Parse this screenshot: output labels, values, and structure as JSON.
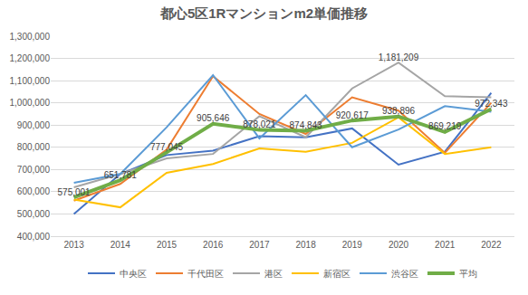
{
  "chart_data": {
    "type": "line",
    "title": "都心5区1Rマンションm2単価推移",
    "categories": [
      "2013",
      "2014",
      "2015",
      "2016",
      "2017",
      "2018",
      "2019",
      "2020",
      "2021",
      "2022"
    ],
    "series": [
      {
        "name": "中央区",
        "color": "#4472c4",
        "values": [
          500000,
          680000,
          765000,
          785000,
          850000,
          845000,
          885000,
          722000,
          780000,
          1045000
        ]
      },
      {
        "name": "千代田区",
        "color": "#ed7d31",
        "values": [
          560000,
          635000,
          790000,
          1120000,
          950000,
          860000,
          1025000,
          965000,
          775000,
          1000000
        ]
      },
      {
        "name": "港区",
        "color": "#a5a5a5",
        "values": [
          620000,
          680000,
          750000,
          770000,
          940000,
          845000,
          1065000,
          1181209,
          1030000,
          1025000
        ],
        "value_labels": [
          null,
          null,
          null,
          null,
          null,
          null,
          null,
          "1,181,209",
          null,
          null
        ]
      },
      {
        "name": "新宿区",
        "color": "#ffc000",
        "values": [
          565000,
          530000,
          685000,
          725000,
          795000,
          780000,
          820000,
          935000,
          770000,
          800000
        ]
      },
      {
        "name": "渋谷区",
        "color": "#5b9bd5",
        "values": [
          640000,
          680000,
          890000,
          1125000,
          840000,
          1035000,
          800000,
          880000,
          985000,
          960000
        ]
      },
      {
        "name": "平均",
        "color": "#70ad47",
        "values": [
          575001,
          651781,
          777045,
          905646,
          878021,
          874843,
          920617,
          938896,
          869219,
          972343
        ],
        "value_labels": [
          "575,001",
          "651,781",
          "777,045",
          "905,646",
          "878,021",
          "874,843",
          "920,617",
          "938,896",
          "869,219",
          "972,343"
        ]
      }
    ],
    "ylim": [
      400000,
      1300000
    ],
    "yticks": [
      {
        "value": 400000,
        "label": "400,000"
      },
      {
        "value": 500000,
        "label": "500,000"
      },
      {
        "value": 600000,
        "label": "600,000"
      },
      {
        "value": 700000,
        "label": "700,000"
      },
      {
        "value": 800000,
        "label": "800,000"
      },
      {
        "value": 900000,
        "label": "900,000"
      },
      {
        "value": 1000000,
        "label": "1,000,000"
      },
      {
        "value": 1100000,
        "label": "1,100,000"
      },
      {
        "value": 1200000,
        "label": "1,200,000"
      },
      {
        "value": 1300000,
        "label": "1,300,000"
      }
    ],
    "grid": true,
    "legend": "bottom",
    "data_labels": true
  }
}
